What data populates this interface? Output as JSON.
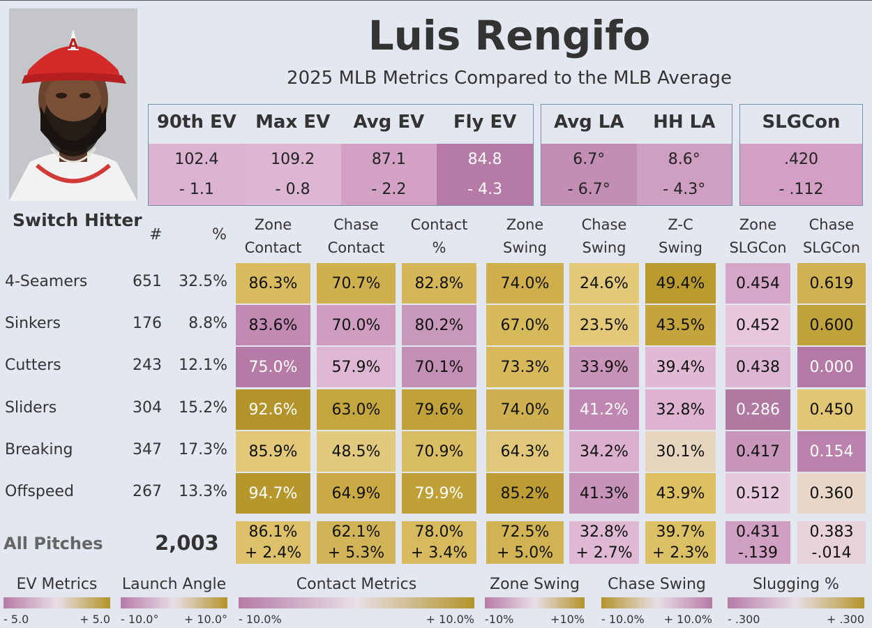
{
  "player": {
    "name": "Luis Rengifo",
    "subtitle": "2025 MLB Metrics Compared to the MLB Average",
    "handedness": "Switch Hitter"
  },
  "top_metrics": {
    "ev": [
      {
        "label": "90th EV",
        "value": "102.4",
        "diff": "- 1.1",
        "color": "#dbb2d0"
      },
      {
        "label": "Max EV",
        "value": "109.2",
        "diff": "- 0.8",
        "color": "#dcb6d2"
      },
      {
        "label": "Avg EV",
        "value": "87.1",
        "diff": "- 2.2",
        "color": "#d2a1c4"
      },
      {
        "label": "Fly EV",
        "value": "84.8",
        "diff": "- 4.3",
        "color": "#b57ba6"
      }
    ],
    "la": [
      {
        "label": "Avg LA",
        "value": "6.7°",
        "diff": "- 6.7°",
        "color": "#c28eb4"
      },
      {
        "label": "HH LA",
        "value": "8.6°",
        "diff": "- 4.3°",
        "color": "#cf9fc1"
      }
    ],
    "slg": [
      {
        "label": "SLGCon",
        "value": ".420",
        "diff": "- .112",
        "color": "#d39fc4"
      }
    ]
  },
  "table": {
    "count_header": "#",
    "pct_header": "%",
    "columns": [
      {
        "line1": "Zone",
        "line2": "Contact"
      },
      {
        "line1": "Chase",
        "line2": "Contact"
      },
      {
        "line1": "Contact",
        "line2": "%"
      },
      {
        "line1": "Zone",
        "line2": "Swing"
      },
      {
        "line1": "Chase",
        "line2": "Swing"
      },
      {
        "line1": "Z-C",
        "line2": "Swing"
      },
      {
        "line1": "Zone",
        "line2": "SLGCon"
      },
      {
        "line1": "Chase",
        "line2": "SLGCon"
      }
    ],
    "rows": [
      {
        "label": "4-Seamers",
        "count": "651",
        "pct": "32.5%",
        "cells": [
          {
            "v": "86.3%",
            "c": "#d8bb5e"
          },
          {
            "v": "70.7%",
            "c": "#cfb04e"
          },
          {
            "v": "82.8%",
            "c": "#d5b75a"
          },
          {
            "v": "74.0%",
            "c": "#cfaf4c"
          },
          {
            "v": "24.6%",
            "c": "#e3c97a"
          },
          {
            "v": "49.4%",
            "c": "#b99a2e"
          },
          {
            "v": "0.454",
            "c": "#d6a6c8"
          },
          {
            "v": "0.619",
            "c": "#d0b252"
          }
        ]
      },
      {
        "label": "Sinkers",
        "count": "176",
        "pct": "8.8%",
        "cells": [
          {
            "v": "83.6%",
            "c": "#c28ab3"
          },
          {
            "v": "70.0%",
            "c": "#ce9dc0"
          },
          {
            "v": "80.2%",
            "c": "#c898ba"
          },
          {
            "v": "67.0%",
            "c": "#d6ba5a"
          },
          {
            "v": "23.5%",
            "c": "#e2c878"
          },
          {
            "v": "43.5%",
            "c": "#c4a43c"
          },
          {
            "v": "0.452",
            "c": "#e7c6de"
          },
          {
            "v": "0.600",
            "c": "#c0a23a"
          }
        ]
      },
      {
        "label": "Cutters",
        "count": "243",
        "pct": "12.1%",
        "cells": [
          {
            "v": "75.0%",
            "c": "#b57ba6",
            "light": true
          },
          {
            "v": "57.9%",
            "c": "#ddb7d3"
          },
          {
            "v": "70.1%",
            "c": "#c390b5"
          },
          {
            "v": "73.3%",
            "c": "#d7b95c"
          },
          {
            "v": "33.9%",
            "c": "#c793b8"
          },
          {
            "v": "39.4%",
            "c": "#e0b9d5"
          },
          {
            "v": "0.438",
            "c": "#dcb6d2"
          },
          {
            "v": "0.000",
            "c": "#b47aa5",
            "light": true
          }
        ]
      },
      {
        "label": "Sliders",
        "count": "304",
        "pct": "15.2%",
        "cells": [
          {
            "v": "92.6%",
            "c": "#b3942a",
            "light": true
          },
          {
            "v": "63.0%",
            "c": "#c4a63f"
          },
          {
            "v": "79.6%",
            "c": "#c1a23a"
          },
          {
            "v": "74.0%",
            "c": "#cfb050"
          },
          {
            "v": "41.2%",
            "c": "#bf86b1",
            "light": true
          },
          {
            "v": "32.8%",
            "c": "#ddb3d1"
          },
          {
            "v": "0.286",
            "c": "#b07aa3",
            "light": true
          },
          {
            "v": "0.450",
            "c": "#e1c673"
          }
        ]
      },
      {
        "label": "Breaking",
        "count": "347",
        "pct": "17.3%",
        "cells": [
          {
            "v": "85.9%",
            "c": "#e2c878"
          },
          {
            "v": "48.5%",
            "c": "#e1c97e"
          },
          {
            "v": "70.9%",
            "c": "#d9bd62"
          },
          {
            "v": "64.3%",
            "c": "#e1c77a"
          },
          {
            "v": "34.2%",
            "c": "#dbb0cf"
          },
          {
            "v": "30.1%",
            "c": "#e6d6bf"
          },
          {
            "v": "0.417",
            "c": "#c896ba"
          },
          {
            "v": "0.154",
            "c": "#bb82ad",
            "light": true
          }
        ]
      },
      {
        "label": "Offspeed",
        "count": "267",
        "pct": "13.3%",
        "cells": [
          {
            "v": "94.7%",
            "c": "#b5972c",
            "light": true
          },
          {
            "v": "64.9%",
            "c": "#c9aa44"
          },
          {
            "v": "79.9%",
            "c": "#bfa037",
            "light": true
          },
          {
            "v": "85.2%",
            "c": "#bc9c33"
          },
          {
            "v": "41.3%",
            "c": "#c793b8"
          },
          {
            "v": "43.9%",
            "c": "#dcc062"
          },
          {
            "v": "0.512",
            "c": "#e6c9dd"
          },
          {
            "v": "0.360",
            "c": "#e8d6c6"
          }
        ]
      }
    ],
    "summary": {
      "label": "All Pitches",
      "count": "2,003",
      "cells": [
        {
          "v": "86.1%",
          "d": "+ 2.4%",
          "c": "#dcc06a"
        },
        {
          "v": "62.1%",
          "d": "+ 5.3%",
          "c": "#d2b458"
        },
        {
          "v": "78.0%",
          "d": "+ 3.4%",
          "c": "#d7b95e"
        },
        {
          "v": "72.5%",
          "d": "+ 5.0%",
          "c": "#d2b354"
        },
        {
          "v": "32.8%",
          "d": "+ 2.7%",
          "c": "#dfb8d4"
        },
        {
          "v": "39.7%",
          "d": "+ 2.3%",
          "c": "#dcc065"
        },
        {
          "v": "0.431",
          "d": "-.139",
          "c": "#cfa0c2"
        },
        {
          "v": "0.383",
          "d": "-.014",
          "c": "#e6d2d8"
        }
      ]
    }
  },
  "legends": [
    {
      "title": "EV Metrics",
      "min": "- 5.0",
      "max": "+ 5.0",
      "from": "#b57ba6",
      "to": "#b3942a"
    },
    {
      "title": "Launch Angle",
      "min": "- 10.0°",
      "max": "+ 10.0°",
      "from": "#b57ba6",
      "to": "#b3942a"
    },
    {
      "title": "Contact Metrics",
      "min": "- 10.0%",
      "max": "+ 10.0%",
      "from": "#b57ba6",
      "to": "#b3942a"
    },
    {
      "title": "Zone Swing",
      "min": "-10%",
      "max": "+10%",
      "from": "#b57ba6",
      "to": "#b3942a"
    },
    {
      "title": "Chase Swing",
      "min": "- 10.0%",
      "max": "+ 10.0%",
      "from": "#b3942a",
      "to": "#b57ba6"
    },
    {
      "title": "Slugging %",
      "min": "- .300",
      "max": "+ .300",
      "from": "#b57ba6",
      "to": "#b3942a"
    }
  ]
}
